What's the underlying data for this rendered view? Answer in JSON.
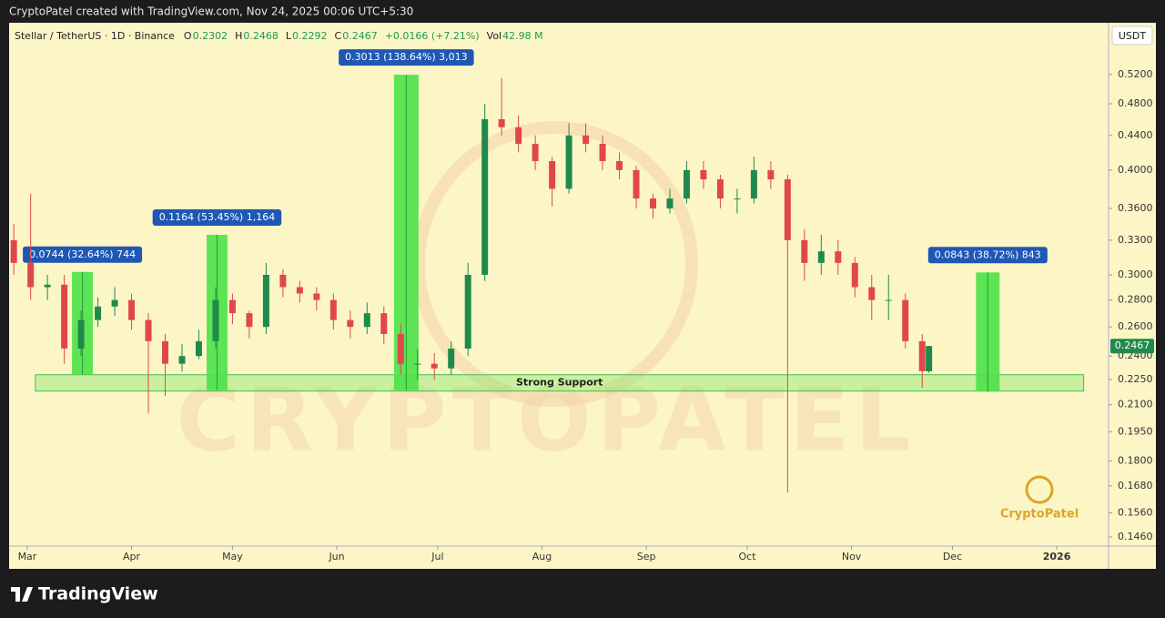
{
  "chart_data": {
    "type": "candlestick",
    "header": "CryptoPatel created with TradingView.com, Nov 24, 2025 00:06 UTC+5:30",
    "symbol": "Stellar / TetherUS · 1D · Binance",
    "ohlc_legend": [
      {
        "key": "O",
        "value": "0.2302"
      },
      {
        "key": "H",
        "value": "0.2468"
      },
      {
        "key": "L",
        "value": "0.2292"
      },
      {
        "key": "C",
        "value": "0.2467"
      },
      {
        "key": "",
        "value": "+0.0166 (+7.21%)"
      },
      {
        "key": "Vol",
        "value": "42.98 M"
      }
    ],
    "currency": "USDT",
    "footer": "TradingView",
    "watermark": "CRYPTOPATEL",
    "logo": "CryptoPatel",
    "log_scale": true,
    "up_color": "#1f8a4c",
    "down_color": "#e0474c",
    "x": [
      -4,
      1,
      6,
      11,
      16,
      21,
      26,
      31,
      36,
      41,
      46,
      51,
      56,
      61,
      66,
      71,
      76,
      81,
      86,
      91,
      96,
      101,
      106,
      111,
      116,
      121,
      126,
      131,
      136,
      141,
      146,
      151,
      156,
      161,
      166,
      171,
      176,
      181,
      186,
      191,
      196,
      201,
      206,
      211,
      216,
      221,
      226,
      231,
      236,
      241,
      246,
      251,
      256,
      261,
      266,
      268
    ],
    "open": [
      0.33,
      0.31,
      0.29,
      0.292,
      0.245,
      0.265,
      0.275,
      0.28,
      0.265,
      0.25,
      0.235,
      0.24,
      0.25,
      0.28,
      0.27,
      0.26,
      0.3,
      0.29,
      0.285,
      0.28,
      0.265,
      0.26,
      0.27,
      0.255,
      0.235,
      0.235,
      0.232,
      0.245,
      0.3,
      0.46,
      0.45,
      0.43,
      0.41,
      0.38,
      0.44,
      0.43,
      0.41,
      0.4,
      0.37,
      0.36,
      0.37,
      0.4,
      0.39,
      0.37,
      0.37,
      0.4,
      0.39,
      0.33,
      0.31,
      0.32,
      0.31,
      0.29,
      0.28,
      0.28,
      0.25,
      0.2302
    ],
    "high": [
      0.345,
      0.375,
      0.3,
      0.3,
      0.272,
      0.282,
      0.29,
      0.285,
      0.27,
      0.255,
      0.248,
      0.258,
      0.29,
      0.285,
      0.272,
      0.31,
      0.305,
      0.295,
      0.29,
      0.285,
      0.272,
      0.278,
      0.275,
      0.262,
      0.245,
      0.242,
      0.25,
      0.31,
      0.48,
      0.515,
      0.465,
      0.44,
      0.415,
      0.455,
      0.455,
      0.44,
      0.42,
      0.405,
      0.375,
      0.38,
      0.41,
      0.41,
      0.395,
      0.38,
      0.415,
      0.41,
      0.395,
      0.34,
      0.335,
      0.33,
      0.315,
      0.3,
      0.3,
      0.285,
      0.255,
      0.2468
    ],
    "low": [
      0.3,
      0.28,
      0.28,
      0.235,
      0.24,
      0.26,
      0.268,
      0.258,
      0.205,
      0.215,
      0.23,
      0.238,
      0.245,
      0.262,
      0.252,
      0.255,
      0.282,
      0.278,
      0.272,
      0.258,
      0.252,
      0.255,
      0.248,
      0.228,
      0.225,
      0.225,
      0.228,
      0.24,
      0.295,
      0.44,
      0.42,
      0.4,
      0.362,
      0.375,
      0.42,
      0.4,
      0.39,
      0.36,
      0.35,
      0.355,
      0.365,
      0.38,
      0.36,
      0.355,
      0.365,
      0.38,
      0.165,
      0.295,
      0.3,
      0.3,
      0.282,
      0.265,
      0.265,
      0.245,
      0.22,
      0.2292
    ],
    "close": [
      0.31,
      0.29,
      0.292,
      0.245,
      0.265,
      0.275,
      0.28,
      0.265,
      0.25,
      0.235,
      0.24,
      0.25,
      0.28,
      0.27,
      0.26,
      0.3,
      0.29,
      0.285,
      0.28,
      0.265,
      0.26,
      0.27,
      0.255,
      0.235,
      0.235,
      0.232,
      0.245,
      0.3,
      0.46,
      0.45,
      0.43,
      0.41,
      0.38,
      0.44,
      0.43,
      0.41,
      0.4,
      0.37,
      0.36,
      0.37,
      0.4,
      0.39,
      0.37,
      0.37,
      0.4,
      0.39,
      0.33,
      0.31,
      0.32,
      0.31,
      0.29,
      0.28,
      0.28,
      0.25,
      0.2302,
      0.2467
    ],
    "xlim": [
      -5.4,
      321.4
    ],
    "ylim": [
      0.1424,
      0.5996
    ],
    "xticks": [
      {
        "value": 0,
        "label": "Mar"
      },
      {
        "value": 31,
        "label": "Apr"
      },
      {
        "value": 61,
        "label": "May"
      },
      {
        "value": 92,
        "label": "Jun"
      },
      {
        "value": 122,
        "label": "Jul"
      },
      {
        "value": 153,
        "label": "Aug"
      },
      {
        "value": 184,
        "label": "Sep"
      },
      {
        "value": 214,
        "label": "Oct"
      },
      {
        "value": 245,
        "label": "Nov"
      },
      {
        "value": 275,
        "label": "Dec"
      },
      {
        "value": 306,
        "label": "2026"
      }
    ],
    "yticks": [
      {
        "value": 0.52,
        "label": "0.5200"
      },
      {
        "value": 0.48,
        "label": "0.4800"
      },
      {
        "value": 0.44,
        "label": "0.4400"
      },
      {
        "value": 0.4,
        "label": "0.4000"
      },
      {
        "value": 0.36,
        "label": "0.3600"
      },
      {
        "value": 0.33,
        "label": "0.3300"
      },
      {
        "value": 0.3,
        "label": "0.3000"
      },
      {
        "value": 0.28,
        "label": "0.2800"
      },
      {
        "value": 0.26,
        "label": "0.2600"
      },
      {
        "value": 0.24,
        "label": "0.2400"
      },
      {
        "value": 0.225,
        "label": "0.2250"
      },
      {
        "value": 0.21,
        "label": "0.2100"
      },
      {
        "value": 0.195,
        "label": "0.1950"
      },
      {
        "value": 0.18,
        "label": "0.1800"
      },
      {
        "value": 0.168,
        "label": "0.1680"
      },
      {
        "value": 0.156,
        "label": "0.1560"
      },
      {
        "value": 0.146,
        "label": "0.1460"
      }
    ],
    "support": {
      "label": "Strong Support",
      "from": 0.218,
      "to": 0.228,
      "x": [
        2.4,
        314
      ]
    },
    "measures": [
      {
        "label": "0.0744 (32.64%) 744",
        "from": 0.228,
        "to": 0.3024,
        "x": [
          13.3,
          19.5
        ]
      },
      {
        "label": "0.1164 (53.45%) 1,164",
        "from": 0.2185,
        "to": 0.3349,
        "x": [
          53.3,
          59.5
        ]
      },
      {
        "label": "0.3013 (138.64%) 3,013",
        "from": 0.2185,
        "to": 0.5198,
        "x": [
          109,
          116.3
        ]
      },
      {
        "label": "0.0843 (38.72%) 843",
        "from": 0.2177,
        "to": 0.302,
        "x": [
          282,
          289
        ]
      }
    ]
  }
}
